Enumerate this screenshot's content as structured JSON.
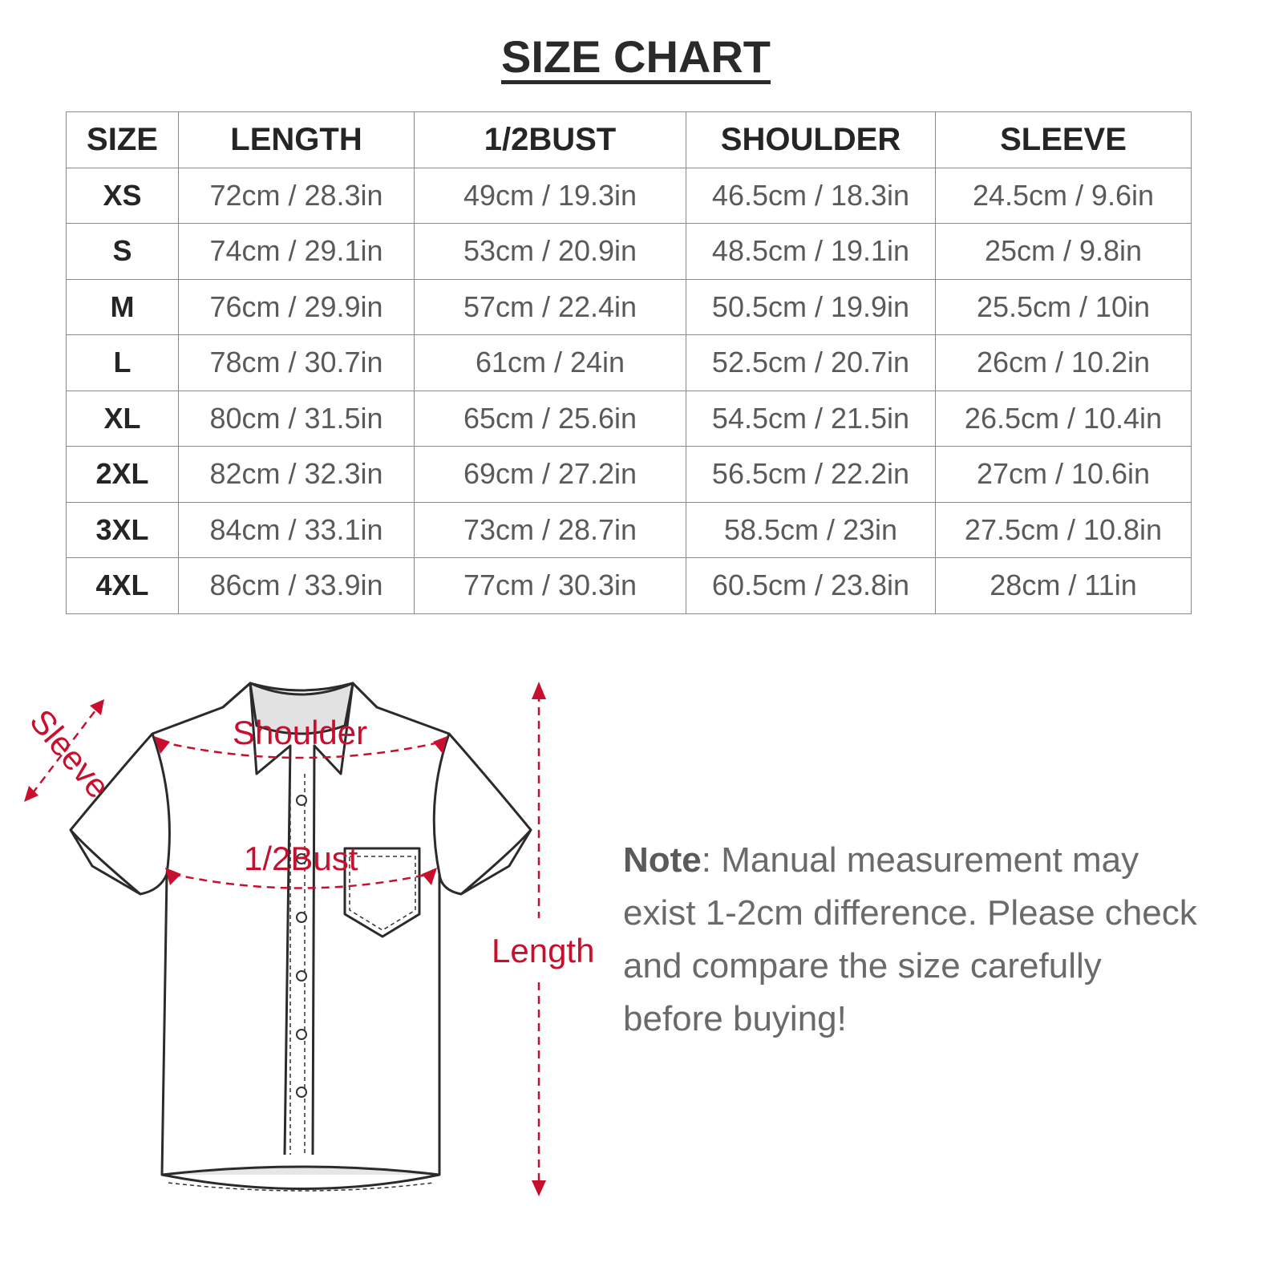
{
  "title": "SIZE CHART",
  "table": {
    "headers": [
      "SIZE",
      "LENGTH",
      "1/2BUST",
      "SHOULDER",
      "SLEEVE"
    ],
    "rows": [
      [
        "XS",
        "72cm / 28.3in",
        "49cm / 19.3in",
        "46.5cm / 18.3in",
        "24.5cm / 9.6in"
      ],
      [
        "S",
        "74cm / 29.1in",
        "53cm / 20.9in",
        "48.5cm / 19.1in",
        "25cm / 9.8in"
      ],
      [
        "M",
        "76cm / 29.9in",
        "57cm / 22.4in",
        "50.5cm / 19.9in",
        "25.5cm / 10in"
      ],
      [
        "L",
        "78cm / 30.7in",
        "61cm / 24in",
        "52.5cm / 20.7in",
        "26cm / 10.2in"
      ],
      [
        "XL",
        "80cm / 31.5in",
        "65cm / 25.6in",
        "54.5cm / 21.5in",
        "26.5cm / 10.4in"
      ],
      [
        "2XL",
        "82cm / 32.3in",
        "69cm / 27.2in",
        "56.5cm / 22.2in",
        "27cm / 10.6in"
      ],
      [
        "3XL",
        "84cm / 33.1in",
        "73cm / 28.7in",
        "58.5cm / 23in",
        "27.5cm / 10.8in"
      ],
      [
        "4XL",
        "86cm / 33.9in",
        "77cm / 30.3in",
        "60.5cm / 23.8in",
        "28cm / 11in"
      ]
    ]
  },
  "diagram": {
    "labels": {
      "sleeve": "Sleeve",
      "shoulder": "Shoulder",
      "bust": "1/2Bust",
      "length": "Length"
    },
    "accent_color": "#c8102e"
  },
  "note": {
    "bold": "Note",
    "text": ": Manual measurement may exist 1-2cm difference. Please check and compare the size carefully before buying!"
  }
}
